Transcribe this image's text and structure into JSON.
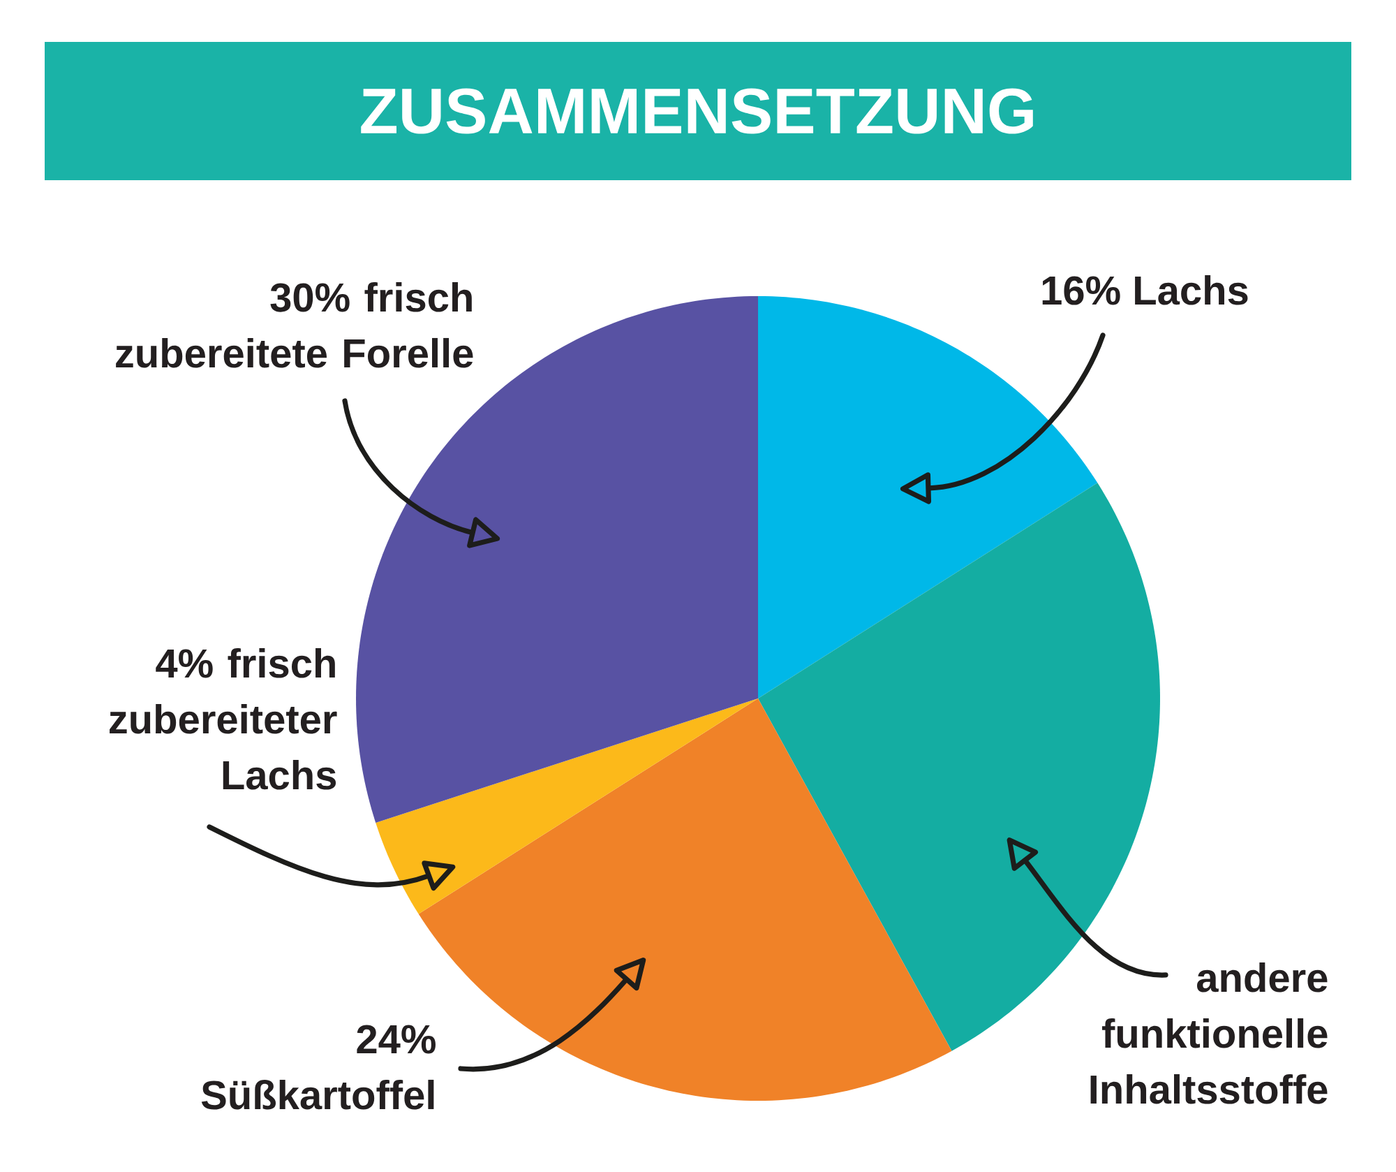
{
  "chart_data": {
    "type": "pie",
    "title": "ZUSAMMENSETZUNG",
    "categories": [
      "16% Lachs",
      "andere funktionelle Inhaltsstoffe",
      "24% Süßkartoffel",
      "4% frisch zubereiteter Lachs",
      "30% frisch zubereitete Forelle"
    ],
    "values": [
      16,
      26,
      24,
      4,
      30
    ],
    "colors": [
      "#00b8e8",
      "#14ada2",
      "#f08228",
      "#fcb91a",
      "#5852a3"
    ]
  }
}
